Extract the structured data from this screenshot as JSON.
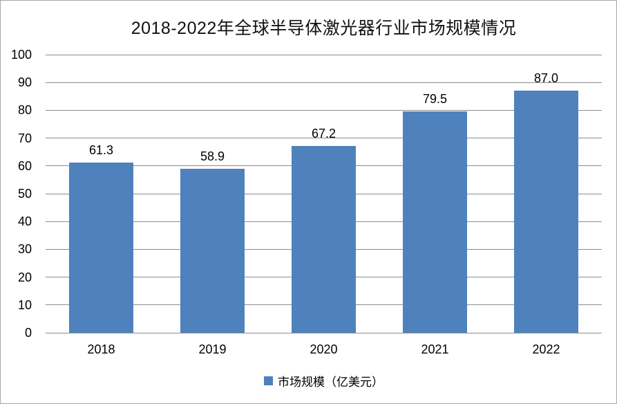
{
  "chart_data": {
    "type": "bar",
    "title": "2018-2022年全球半导体激光器行业市场规模情况",
    "categories": [
      "2018",
      "2019",
      "2020",
      "2021",
      "2022"
    ],
    "values": [
      61.3,
      58.9,
      67.2,
      79.5,
      87.0
    ],
    "data_labels": [
      "61.3",
      "58.9",
      "67.2",
      "79.5",
      "87.0"
    ],
    "series_name": "市场规模（亿美元）",
    "xlabel": "",
    "ylabel": "",
    "ylim": [
      0,
      100
    ],
    "yticks": [
      0,
      10,
      20,
      30,
      40,
      50,
      60,
      70,
      80,
      90,
      100
    ],
    "grid": true,
    "legend_position": "bottom",
    "colors": {
      "bar": "#4F81BD",
      "gridline": "#8C8C8C",
      "text": "#000000",
      "frame_border": "#A6A6A6"
    }
  }
}
